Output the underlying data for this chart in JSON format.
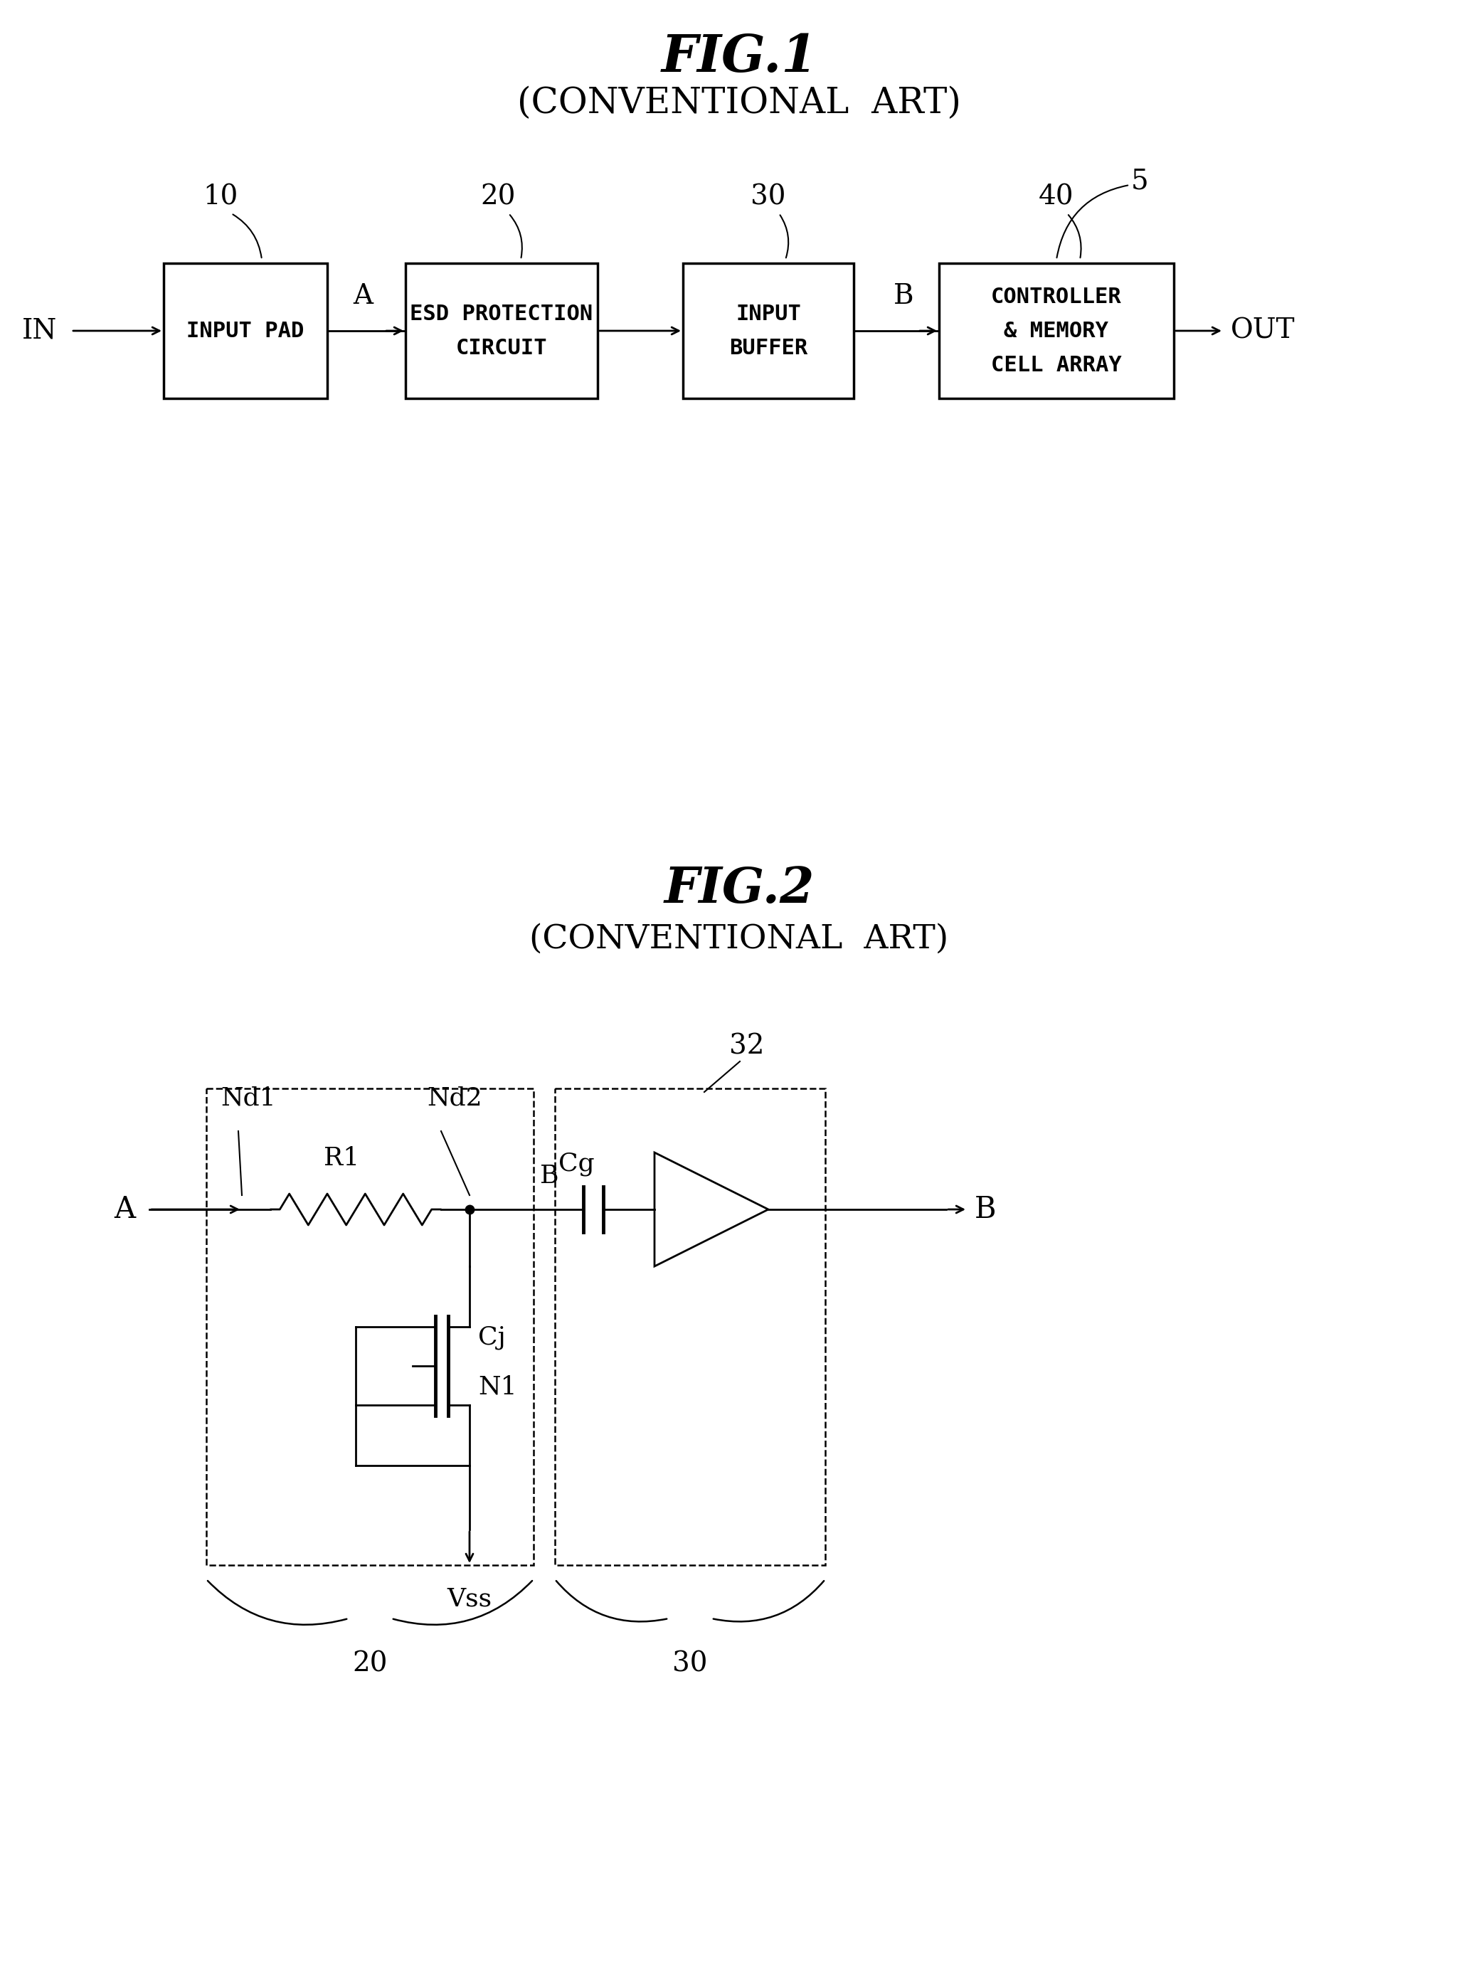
{
  "fig1_title": "FIG.1",
  "fig1_subtitle": "(CONVENTIONAL  ART)",
  "fig2_title": "FIG.2",
  "fig2_subtitle": "(CONVENTIONAL  ART)",
  "background_color": "#ffffff",
  "line_color": "#000000"
}
